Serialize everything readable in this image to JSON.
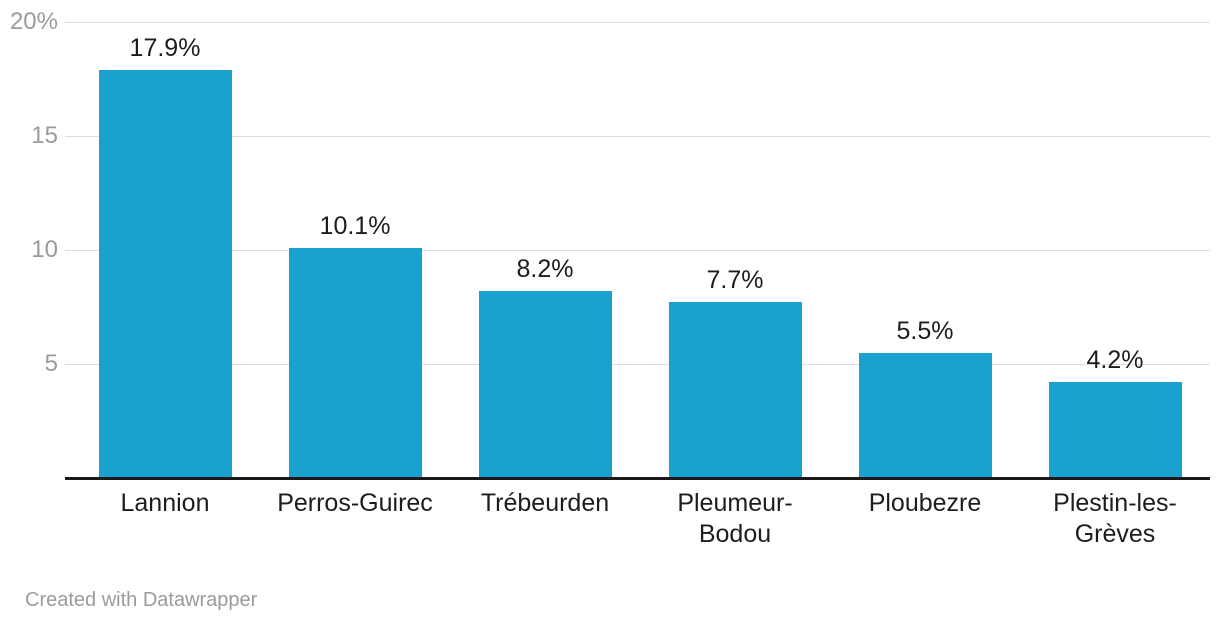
{
  "chart_data": {
    "type": "bar",
    "title": "",
    "xlabel": "",
    "ylabel": "",
    "categories": [
      "Lannion",
      "Perros-Guirec",
      "Trébeurden",
      "Pleumeur-Bodou",
      "Ploubezre",
      "Plestin-les-Grèves"
    ],
    "category_label_lines": [
      [
        "Lannion"
      ],
      [
        "Perros-Guirec"
      ],
      [
        "Trébeurden"
      ],
      [
        "Pleumeur-",
        "Bodou"
      ],
      [
        "Ploubezre"
      ],
      [
        "Plestin-les-",
        "Grèves"
      ]
    ],
    "values": [
      17.9,
      10.1,
      8.2,
      7.7,
      5.5,
      4.2
    ],
    "value_labels": [
      "17.9%",
      "10.1%",
      "8.2%",
      "7.7%",
      "5.5%",
      "4.2%"
    ],
    "ylim": [
      0,
      20
    ],
    "yticks": [
      {
        "value": 5,
        "label": "5"
      },
      {
        "value": 10,
        "label": "10"
      },
      {
        "value": 15,
        "label": "15"
      },
      {
        "value": 20,
        "label": "20%"
      }
    ],
    "grid": "horizontal",
    "legend": "none",
    "colors": {
      "bar": "#1aa1ce",
      "gridline": "#dddddd",
      "tick_label": "#9b9b9b",
      "value_label": "#1d1d1d",
      "category_label": "#1d1d1d",
      "axis_line": "#1a1a1a",
      "credit": "#9b9b9b"
    }
  },
  "footer": {
    "credit": "Created with Datawrapper"
  }
}
